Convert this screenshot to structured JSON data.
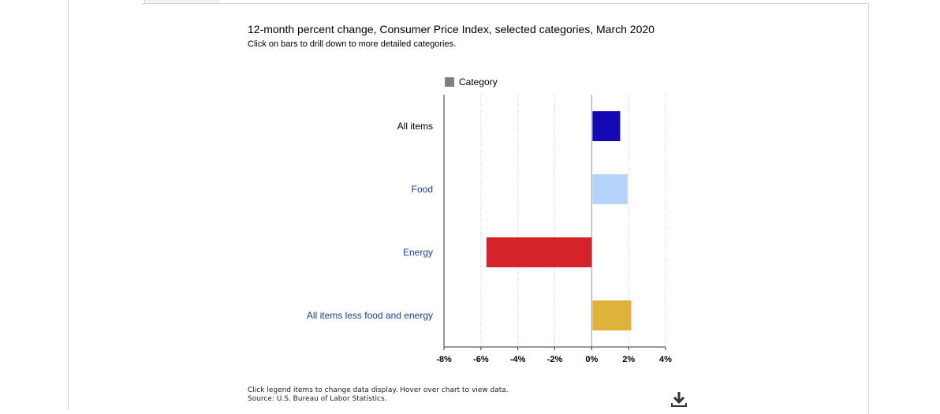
{
  "chart_data": {
    "type": "bar",
    "orientation": "horizontal",
    "title": "12-month percent change, Consumer Price Index, selected categories, March 2020",
    "subtitle": "Click on bars to drill down to more detailed categories.",
    "legend": {
      "label": "Category",
      "placement": "top"
    },
    "categories": [
      "All items",
      "Food",
      "Energy",
      "All items less food and energy"
    ],
    "category_label_colors": [
      "#000000",
      "#1a3c9c",
      "#1a3c9c",
      "#1a3c9c"
    ],
    "values": [
      1.5,
      1.9,
      -5.7,
      2.1
    ],
    "bar_colors": [
      "#1409b4",
      "#b5d4fb",
      "#d4232b",
      "#dfb23b"
    ],
    "x_ticks": [
      -8,
      -6,
      -4,
      -2,
      0,
      2,
      4
    ],
    "x_tick_labels": [
      "-8%",
      "-6%",
      "-4%",
      "-2%",
      "0%",
      "2%",
      "4%"
    ],
    "xlim": [
      -8,
      4
    ],
    "grid": true
  },
  "footer": {
    "note": "Click legend items to change data display. Hover over chart to view data.",
    "source": "Source: U.S. Bureau of Labor Statistics."
  },
  "icons": {
    "download": "download-icon"
  }
}
